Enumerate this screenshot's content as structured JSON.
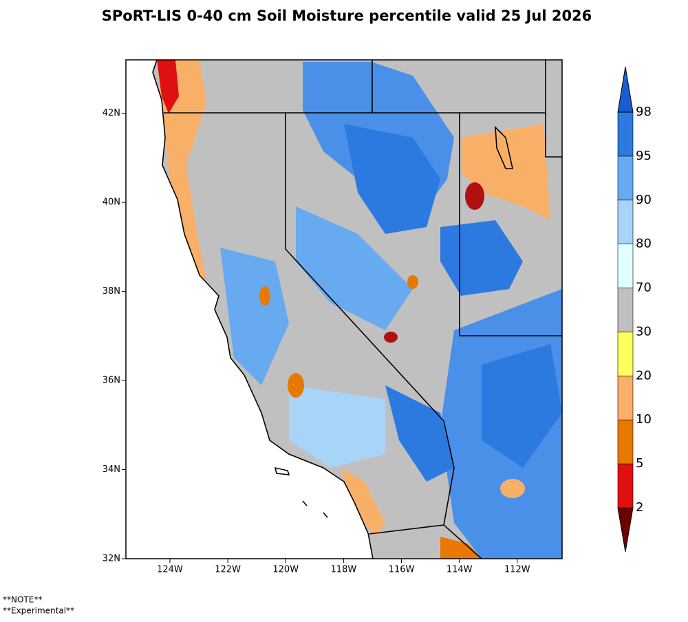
{
  "title": "SPoRT-LIS 0-40 cm Soil Moisture percentile valid 25 Jul 2026",
  "map": {
    "lonlim": [
      -125.52,
      -110.45
    ],
    "latlim": [
      32,
      43.2
    ],
    "lat_ticks": [
      {
        "value": 32,
        "label": "32N"
      },
      {
        "value": 34,
        "label": "34N"
      },
      {
        "value": 36,
        "label": "36N"
      },
      {
        "value": 38,
        "label": "38N"
      },
      {
        "value": 40,
        "label": "40N"
      },
      {
        "value": 42,
        "label": "42N"
      }
    ],
    "lon_ticks": [
      {
        "value": -124,
        "label": "124W"
      },
      {
        "value": -122,
        "label": "122W"
      },
      {
        "value": -120,
        "label": "120W"
      },
      {
        "value": -118,
        "label": "118W"
      },
      {
        "value": -116,
        "label": "116W"
      },
      {
        "value": -114,
        "label": "114W"
      },
      {
        "value": -112,
        "label": "112W"
      }
    ]
  },
  "colorbar": {
    "boundaries": [
      2,
      5,
      10,
      20,
      30,
      70,
      80,
      90,
      95,
      98
    ],
    "colors": [
      "#6e0000",
      "#e01010",
      "#e87800",
      "#f8b068",
      "#ffff60",
      "#c0c0c0",
      "#e0ffff",
      "#a8d4f8",
      "#68aaf0",
      "#2c7ae0",
      "#1a5cd0"
    ]
  },
  "notes": [
    "**NOTE**",
    "**Experimental**"
  ]
}
